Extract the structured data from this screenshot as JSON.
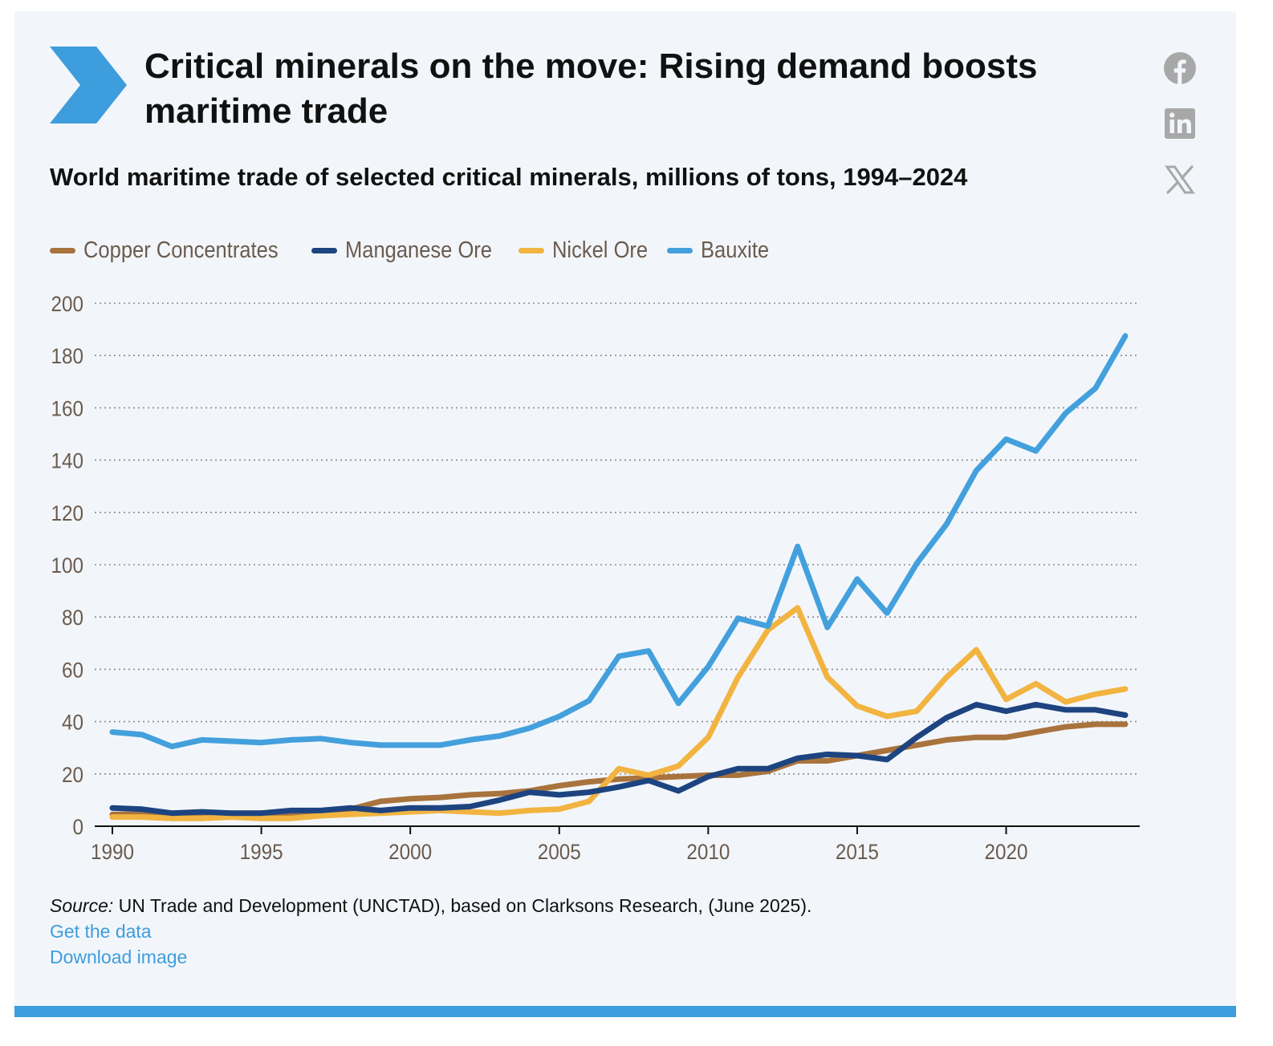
{
  "header": {
    "title": "Critical minerals on the move: Rising demand boosts maritime trade",
    "subtitle": "World maritime trade of selected critical minerals, millions of tons, 1994–2024"
  },
  "share": {
    "icons": [
      "facebook-icon",
      "linkedin-icon",
      "x-icon"
    ]
  },
  "colors": {
    "copper": "#a9733d",
    "manganese": "#1d4480",
    "nickel": "#f2b441",
    "bauxite": "#43a0dc",
    "accent": "#3e9ddc"
  },
  "chart_data": {
    "type": "line",
    "title": "World maritime trade of selected critical minerals, millions of tons, 1994–2024",
    "xlabel": "",
    "ylabel": "",
    "xlim": [
      1990,
      2024
    ],
    "ylim": [
      0,
      200
    ],
    "x_ticks": [
      1990,
      1995,
      2000,
      2005,
      2010,
      2015,
      2020
    ],
    "y_ticks": [
      0,
      20,
      40,
      60,
      80,
      100,
      120,
      140,
      160,
      180,
      200
    ],
    "grid": true,
    "legend_position": "top-left",
    "x": [
      1990,
      1991,
      1992,
      1993,
      1994,
      1995,
      1996,
      1997,
      1998,
      1999,
      2000,
      2001,
      2002,
      2003,
      2004,
      2005,
      2006,
      2007,
      2008,
      2009,
      2010,
      2011,
      2012,
      2013,
      2014,
      2015,
      2016,
      2017,
      2018,
      2019,
      2020,
      2021,
      2022,
      2023,
      2024
    ],
    "series": [
      {
        "name": "Copper Concentrates",
        "color": "#a9733d",
        "values": [
          4.5,
          4.5,
          4,
          4.5,
          5,
          5,
          5,
          5.5,
          6.5,
          9.5,
          10.5,
          11,
          12,
          12.5,
          13.5,
          15.5,
          17,
          18,
          18.5,
          19,
          19.5,
          19.5,
          21,
          25,
          25,
          27,
          29,
          31,
          33,
          34,
          34,
          36,
          38,
          39,
          39
        ]
      },
      {
        "name": "Manganese Ore",
        "color": "#1d4480",
        "values": [
          7,
          6.5,
          5,
          5.5,
          5,
          5,
          6,
          6,
          7,
          6,
          7,
          7,
          7.5,
          10,
          13,
          12,
          13,
          15,
          17.5,
          13.5,
          19,
          22,
          22,
          26,
          27.5,
          27,
          25.5,
          34,
          41.5,
          46.5,
          44,
          46.5,
          44.5,
          44.5,
          42.5
        ]
      },
      {
        "name": "Nickel Ore",
        "color": "#f2b441",
        "values": [
          3.5,
          3.5,
          3,
          3,
          3.5,
          3,
          3,
          4,
          4.5,
          5,
          5.5,
          6,
          5.5,
          5,
          6,
          6.5,
          9.5,
          22,
          19.5,
          23,
          34,
          57,
          75,
          83.5,
          57,
          46,
          42,
          44,
          57,
          67.5,
          48.5,
          54.5,
          47.5,
          50.5,
          52.5
        ]
      },
      {
        "name": "Bauxite",
        "color": "#43a0dc",
        "values": [
          36,
          35,
          30.5,
          33,
          32.5,
          32,
          33,
          33.5,
          32,
          31,
          31,
          31,
          33,
          34.5,
          37.5,
          42,
          48,
          65,
          67,
          47,
          61,
          79.5,
          76.5,
          107,
          76,
          94.5,
          81.5,
          100.5,
          115.5,
          136,
          148,
          143.5,
          158,
          167.5,
          187.5
        ]
      }
    ]
  },
  "footer": {
    "source_label": "Source:",
    "source_text": " UN Trade and Development (UNCTAD), based on Clarksons Research, (June 2025).",
    "get_data": "Get the data",
    "download": "Download image"
  }
}
